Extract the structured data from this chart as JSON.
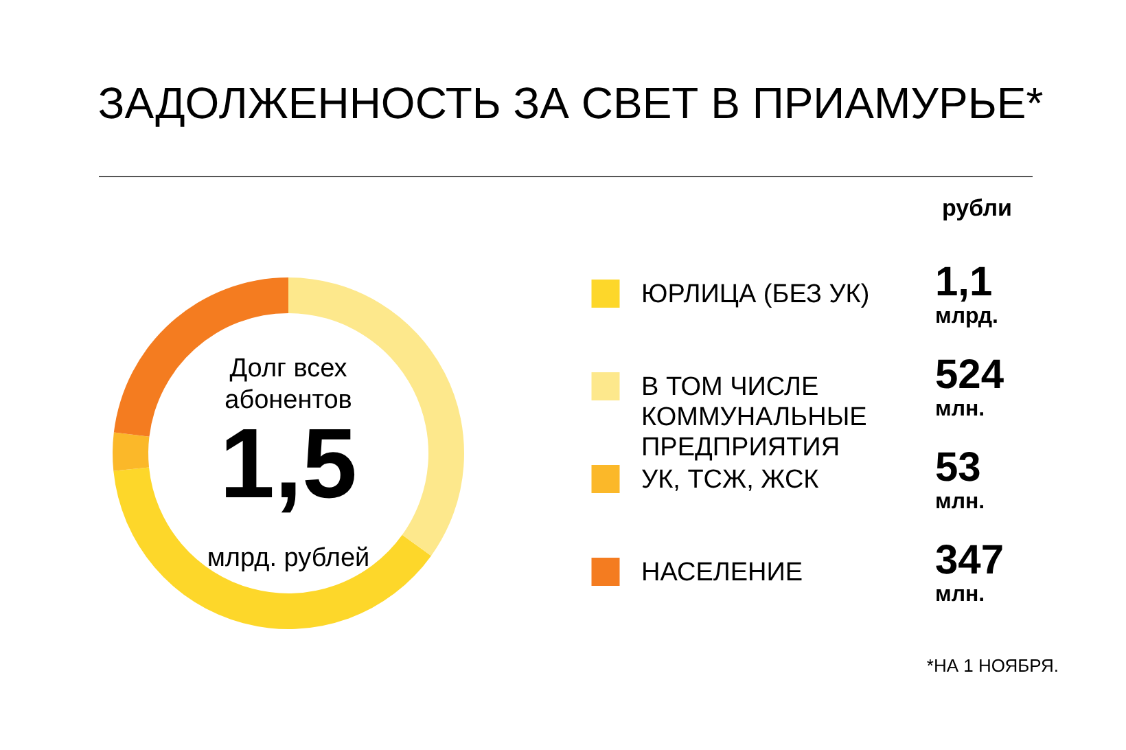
{
  "chart_data": {
    "type": "donut",
    "title": "ЗАДОЛЖЕННОСТЬ ЗА СВЕТ В ПРИАМУРЬЕ*",
    "categories": [
      "ЮРЛИЦА (БЕЗ УК)",
      "В ТОМ ЧИСЛЕ КОММУНАЛЬНЫЕ ПРЕДПРИЯТИЯ",
      "УК, ТСЖ, ЖСК",
      "НАСЕЛЕНИЕ"
    ],
    "values": [
      38.5,
      34.9,
      3.5,
      23.1
    ],
    "colors": [
      "#fdd72a",
      "#fde88c",
      "#fbb829",
      "#f47c20"
    ],
    "legend": "right",
    "annotations": [
      "Долг всех абонентов",
      "1,5",
      "млрд. рублей",
      "рубли",
      "*НА 1 НОЯБРЯ.",
      "1,1 млрд.",
      "524 млн.",
      "53 млн.",
      "347 млн."
    ]
  }
}
